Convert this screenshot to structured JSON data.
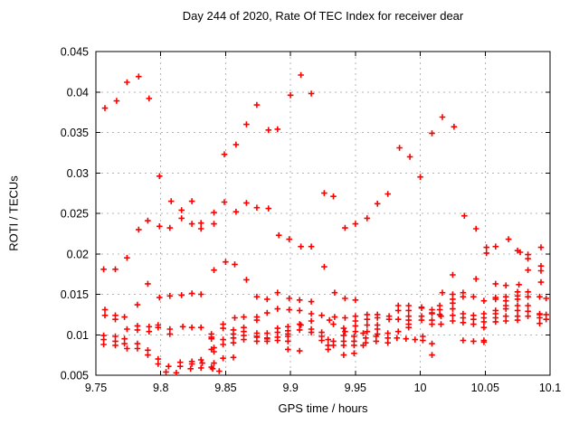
{
  "chart_data": {
    "type": "scatter",
    "title": "Day 244 of 2020, Rate Of TEC Index for receiver dear",
    "xlabel": "GPS time / hours",
    "ylabel": "ROTI / TECUs",
    "xlim": [
      9.75,
      10.1
    ],
    "ylim": [
      0.005,
      0.045
    ],
    "grid": true,
    "legend": "none",
    "marker": {
      "symbol": "plus",
      "color": "#ff0000",
      "size": 7
    },
    "colors": {
      "axis": "#000000",
      "grid": "#b4b4b4",
      "background": "#ffffff",
      "text": "#000000"
    },
    "xticks": {
      "values": [
        9.75,
        9.8,
        9.85,
        9.9,
        9.95,
        10,
        10.05,
        10.1
      ],
      "labels": [
        "9.75",
        "9.8",
        "9.85",
        "9.9",
        "9.95",
        "10",
        "10.05",
        "10.1"
      ]
    },
    "yticks": {
      "values": [
        0.005,
        0.01,
        0.015,
        0.02,
        0.025,
        0.03,
        0.035,
        0.04,
        0.045
      ],
      "labels": [
        "0.005",
        "0.01",
        "0.015",
        "0.02",
        "0.025",
        "0.03",
        "0.035",
        "0.04",
        "0.045"
      ]
    },
    "points": [
      [
        9.757,
        0.038
      ],
      [
        9.766,
        0.0389
      ],
      [
        9.774,
        0.0412
      ],
      [
        9.783,
        0.0419
      ],
      [
        9.791,
        0.0392
      ],
      [
        9.799,
        0.0296
      ],
      [
        9.808,
        0.0265
      ],
      [
        9.824,
        0.0265
      ],
      [
        9.849,
        0.0264
      ],
      [
        9.849,
        0.0323
      ],
      [
        9.858,
        0.0335
      ],
      [
        9.866,
        0.036
      ],
      [
        9.874,
        0.0384
      ],
      [
        9.883,
        0.0353
      ],
      [
        9.89,
        0.0354
      ],
      [
        9.9,
        0.0396
      ],
      [
        9.908,
        0.0421
      ],
      [
        9.916,
        0.0398
      ],
      [
        9.866,
        0.0263
      ],
      [
        9.874,
        0.0257
      ],
      [
        9.883,
        0.0256
      ],
      [
        9.926,
        0.0275
      ],
      [
        9.933,
        0.0271
      ],
      [
        9.967,
        0.0262
      ],
      [
        9.975,
        0.0274
      ],
      [
        9.984,
        0.0331
      ],
      [
        9.992,
        0.032
      ],
      [
        10.0,
        0.0295
      ],
      [
        10.009,
        0.0349
      ],
      [
        10.017,
        0.0369
      ],
      [
        10.026,
        0.0357
      ],
      [
        9.783,
        0.023
      ],
      [
        9.79,
        0.0241
      ],
      [
        9.799,
        0.0234
      ],
      [
        9.807,
        0.0232
      ],
      [
        9.816,
        0.0254
      ],
      [
        9.816,
        0.0244
      ],
      [
        9.824,
        0.0237
      ],
      [
        9.831,
        0.0238
      ],
      [
        9.831,
        0.0231
      ],
      [
        9.841,
        0.0251
      ],
      [
        9.841,
        0.0237
      ],
      [
        9.858,
        0.0252
      ],
      [
        9.891,
        0.0223
      ],
      [
        9.899,
        0.0218
      ],
      [
        9.908,
        0.0209
      ],
      [
        9.916,
        0.0209
      ],
      [
        9.942,
        0.0232
      ],
      [
        9.95,
        0.0237
      ],
      [
        9.959,
        0.0244
      ],
      [
        10.034,
        0.0247
      ],
      [
        10.043,
        0.0231
      ],
      [
        10.051,
        0.0208
      ],
      [
        10.051,
        0.0201
      ],
      [
        10.058,
        0.0209
      ],
      [
        10.068,
        0.0218
      ],
      [
        10.075,
        0.0204
      ],
      [
        10.077,
        0.0202
      ],
      [
        10.083,
        0.0199
      ],
      [
        10.083,
        0.0194
      ],
      [
        10.093,
        0.0208
      ],
      [
        9.756,
        0.0181
      ],
      [
        9.765,
        0.0181
      ],
      [
        9.774,
        0.0195
      ],
      [
        9.79,
        0.0163
      ],
      [
        9.841,
        0.018
      ],
      [
        9.85,
        0.019
      ],
      [
        9.857,
        0.0187
      ],
      [
        9.866,
        0.0168
      ],
      [
        9.926,
        0.0184
      ],
      [
        10.025,
        0.0174
      ],
      [
        10.043,
        0.0169
      ],
      [
        10.058,
        0.0163
      ],
      [
        10.066,
        0.0161
      ],
      [
        10.076,
        0.0162
      ],
      [
        10.083,
        0.018
      ],
      [
        10.093,
        0.0185
      ],
      [
        10.093,
        0.0179
      ],
      [
        10.093,
        0.0165
      ],
      [
        9.799,
        0.0146
      ],
      [
        9.807,
        0.0148
      ],
      [
        9.816,
        0.0149
      ],
      [
        9.824,
        0.0151
      ],
      [
        9.831,
        0.015
      ],
      [
        9.874,
        0.0147
      ],
      [
        9.882,
        0.0144
      ],
      [
        9.89,
        0.0152
      ],
      [
        9.899,
        0.0145
      ],
      [
        9.907,
        0.0143
      ],
      [
        9.916,
        0.0141
      ],
      [
        9.934,
        0.0152
      ],
      [
        9.942,
        0.0145
      ],
      [
        9.95,
        0.0143
      ],
      [
        10.017,
        0.0152
      ],
      [
        10.025,
        0.015
      ],
      [
        10.025,
        0.0144
      ],
      [
        10.025,
        0.0139
      ],
      [
        10.033,
        0.0152
      ],
      [
        10.033,
        0.0147
      ],
      [
        10.041,
        0.0147
      ],
      [
        10.049,
        0.0142
      ],
      [
        10.058,
        0.0146
      ],
      [
        10.058,
        0.0144
      ],
      [
        10.066,
        0.0147
      ],
      [
        10.066,
        0.0142
      ],
      [
        10.075,
        0.0153
      ],
      [
        10.075,
        0.0148
      ],
      [
        10.075,
        0.0144
      ],
      [
        10.083,
        0.0153
      ],
      [
        10.083,
        0.0147
      ],
      [
        10.092,
        0.0147
      ],
      [
        10.097,
        0.0145
      ],
      [
        9.757,
        0.0131
      ],
      [
        9.757,
        0.0124
      ],
      [
        9.765,
        0.0124
      ],
      [
        9.765,
        0.0119
      ],
      [
        9.772,
        0.0122
      ],
      [
        9.782,
        0.0137
      ],
      [
        9.857,
        0.0121
      ],
      [
        9.864,
        0.0122
      ],
      [
        9.874,
        0.0122
      ],
      [
        9.874,
        0.0118
      ],
      [
        9.882,
        0.0127
      ],
      [
        9.89,
        0.0132
      ],
      [
        9.899,
        0.0131
      ],
      [
        9.907,
        0.013
      ],
      [
        9.916,
        0.0126
      ],
      [
        9.916,
        0.0117
      ],
      [
        9.924,
        0.0124
      ],
      [
        9.93,
        0.0118
      ],
      [
        9.934,
        0.0122
      ],
      [
        9.942,
        0.0121
      ],
      [
        9.95,
        0.0123
      ],
      [
        9.95,
        0.0117
      ],
      [
        9.959,
        0.0125
      ],
      [
        9.959,
        0.0119
      ],
      [
        9.967,
        0.0125
      ],
      [
        9.967,
        0.0121
      ],
      [
        9.976,
        0.0123
      ],
      [
        9.976,
        0.0119
      ],
      [
        9.983,
        0.0136
      ],
      [
        9.983,
        0.013
      ],
      [
        9.983,
        0.0119
      ],
      [
        9.991,
        0.0136
      ],
      [
        9.991,
        0.013
      ],
      [
        9.991,
        0.0123
      ],
      [
        9.991,
        0.0118
      ],
      [
        10.001,
        0.0134
      ],
      [
        10.001,
        0.0133
      ],
      [
        10.001,
        0.0123
      ],
      [
        10.001,
        0.0118
      ],
      [
        10.009,
        0.0131
      ],
      [
        10.009,
        0.0127
      ],
      [
        10.009,
        0.0126
      ],
      [
        10.009,
        0.0118
      ],
      [
        10.009,
        0.0113
      ],
      [
        10.015,
        0.0136
      ],
      [
        10.015,
        0.0131
      ],
      [
        10.015,
        0.0125
      ],
      [
        10.016,
        0.0123
      ],
      [
        10.016,
        0.0113
      ],
      [
        10.025,
        0.0132
      ],
      [
        10.025,
        0.0124
      ],
      [
        10.025,
        0.0117
      ],
      [
        10.033,
        0.0126
      ],
      [
        10.033,
        0.0121
      ],
      [
        10.033,
        0.0115
      ],
      [
        10.041,
        0.0124
      ],
      [
        10.041,
        0.0119
      ],
      [
        10.041,
        0.0113
      ],
      [
        10.049,
        0.0126
      ],
      [
        10.049,
        0.0121
      ],
      [
        10.049,
        0.0116
      ],
      [
        10.049,
        0.0109
      ],
      [
        10.058,
        0.013
      ],
      [
        10.058,
        0.0126
      ],
      [
        10.058,
        0.0121
      ],
      [
        10.058,
        0.0116
      ],
      [
        10.066,
        0.0136
      ],
      [
        10.066,
        0.0132
      ],
      [
        10.066,
        0.0123
      ],
      [
        10.066,
        0.0117
      ],
      [
        10.075,
        0.0136
      ],
      [
        10.075,
        0.013
      ],
      [
        10.075,
        0.0123
      ],
      [
        10.075,
        0.0118
      ],
      [
        10.083,
        0.0136
      ],
      [
        10.083,
        0.0129
      ],
      [
        10.083,
        0.0123
      ],
      [
        10.092,
        0.0126
      ],
      [
        10.092,
        0.0125
      ],
      [
        10.092,
        0.0121
      ],
      [
        10.092,
        0.0114
      ],
      [
        10.097,
        0.0125
      ],
      [
        10.097,
        0.0119
      ],
      [
        9.774,
        0.0107
      ],
      [
        9.782,
        0.0111
      ],
      [
        9.782,
        0.0106
      ],
      [
        9.791,
        0.011
      ],
      [
        9.791,
        0.0104
      ],
      [
        9.798,
        0.0112
      ],
      [
        9.798,
        0.0109
      ],
      [
        9.807,
        0.0107
      ],
      [
        9.807,
        0.0101
      ],
      [
        9.817,
        0.011
      ],
      [
        9.824,
        0.0109
      ],
      [
        9.831,
        0.0109
      ],
      [
        9.839,
        0.0101
      ],
      [
        9.848,
        0.0113
      ],
      [
        9.848,
        0.0108
      ],
      [
        9.856,
        0.0106
      ],
      [
        9.856,
        0.0101
      ],
      [
        9.864,
        0.0109
      ],
      [
        9.864,
        0.0104
      ],
      [
        9.874,
        0.0102
      ],
      [
        9.882,
        0.0102
      ],
      [
        9.89,
        0.0108
      ],
      [
        9.89,
        0.0103
      ],
      [
        9.898,
        0.011
      ],
      [
        9.898,
        0.0105
      ],
      [
        9.898,
        0.0101
      ],
      [
        9.907,
        0.0113
      ],
      [
        9.908,
        0.0112
      ],
      [
        9.907,
        0.0106
      ],
      [
        9.916,
        0.0107
      ],
      [
        9.916,
        0.0103
      ],
      [
        9.924,
        0.0103
      ],
      [
        9.933,
        0.0113
      ],
      [
        9.941,
        0.0108
      ],
      [
        9.942,
        0.0104
      ],
      [
        9.95,
        0.0111
      ],
      [
        9.95,
        0.0104
      ],
      [
        9.956,
        0.0102
      ],
      [
        9.959,
        0.0112
      ],
      [
        9.959,
        0.0104
      ],
      [
        9.967,
        0.0112
      ],
      [
        9.967,
        0.0107
      ],
      [
        9.967,
        0.0101
      ],
      [
        9.975,
        0.0102
      ],
      [
        9.983,
        0.0104
      ],
      [
        9.991,
        0.0113
      ],
      [
        9.991,
        0.0109
      ],
      [
        9.756,
        0.0099
      ],
      [
        9.756,
        0.0094
      ],
      [
        9.756,
        0.0088
      ],
      [
        9.765,
        0.0098
      ],
      [
        9.765,
        0.0092
      ],
      [
        9.765,
        0.0087
      ],
      [
        9.772,
        0.0095
      ],
      [
        9.772,
        0.0089
      ],
      [
        9.774,
        0.0083
      ],
      [
        9.782,
        0.0089
      ],
      [
        9.782,
        0.0083
      ],
      [
        9.839,
        0.0097
      ],
      [
        9.839,
        0.0095
      ],
      [
        9.839,
        0.0082
      ],
      [
        9.841,
        0.0084
      ],
      [
        9.841,
        0.0079
      ],
      [
        9.848,
        0.0094
      ],
      [
        9.848,
        0.0088
      ],
      [
        9.856,
        0.0096
      ],
      [
        9.856,
        0.009
      ],
      [
        9.864,
        0.0099
      ],
      [
        9.864,
        0.0094
      ],
      [
        9.874,
        0.0098
      ],
      [
        9.874,
        0.0097
      ],
      [
        9.874,
        0.0092
      ],
      [
        9.882,
        0.0096
      ],
      [
        9.882,
        0.0095
      ],
      [
        9.882,
        0.0092
      ],
      [
        9.89,
        0.0097
      ],
      [
        9.89,
        0.0093
      ],
      [
        9.898,
        0.0098
      ],
      [
        9.898,
        0.0092
      ],
      [
        9.898,
        0.0082
      ],
      [
        9.907,
        0.008
      ],
      [
        9.924,
        0.0098
      ],
      [
        9.924,
        0.0093
      ],
      [
        9.929,
        0.0094
      ],
      [
        9.929,
        0.0087
      ],
      [
        9.929,
        0.0082
      ],
      [
        9.933,
        0.0092
      ],
      [
        9.933,
        0.0087
      ],
      [
        9.941,
        0.0099
      ],
      [
        9.941,
        0.0092
      ],
      [
        9.941,
        0.0087
      ],
      [
        9.941,
        0.0075
      ],
      [
        9.949,
        0.0098
      ],
      [
        9.949,
        0.0092
      ],
      [
        9.949,
        0.0087
      ],
      [
        9.949,
        0.0077
      ],
      [
        9.956,
        0.0087
      ],
      [
        9.958,
        0.0096
      ],
      [
        9.958,
        0.009
      ],
      [
        9.966,
        0.0098
      ],
      [
        9.966,
        0.0092
      ],
      [
        9.975,
        0.0096
      ],
      [
        9.975,
        0.009
      ],
      [
        9.982,
        0.0096
      ],
      [
        9.989,
        0.0095
      ],
      [
        9.996,
        0.0094
      ],
      [
        10.002,
        0.0098
      ],
      [
        10.002,
        0.0093
      ],
      [
        10.009,
        0.0089
      ],
      [
        10.009,
        0.0075
      ],
      [
        10.033,
        0.0093
      ],
      [
        10.041,
        0.0092
      ],
      [
        10.049,
        0.0093
      ],
      [
        10.049,
        0.0091
      ],
      [
        9.79,
        0.0081
      ],
      [
        9.79,
        0.0075
      ],
      [
        9.798,
        0.007
      ],
      [
        9.798,
        0.0064
      ],
      [
        9.804,
        0.0054
      ],
      [
        9.806,
        0.0061
      ],
      [
        9.812,
        0.0053
      ],
      [
        9.815,
        0.0066
      ],
      [
        9.815,
        0.0061
      ],
      [
        9.823,
        0.0058
      ],
      [
        9.824,
        0.0067
      ],
      [
        9.824,
        0.0064
      ],
      [
        9.831,
        0.0069
      ],
      [
        9.832,
        0.0065
      ],
      [
        9.831,
        0.0059
      ],
      [
        9.839,
        0.006
      ],
      [
        9.84,
        0.0058
      ],
      [
        9.841,
        0.0065
      ],
      [
        9.845,
        0.0055
      ],
      [
        9.848,
        0.0071
      ],
      [
        9.856,
        0.0072
      ]
    ]
  }
}
